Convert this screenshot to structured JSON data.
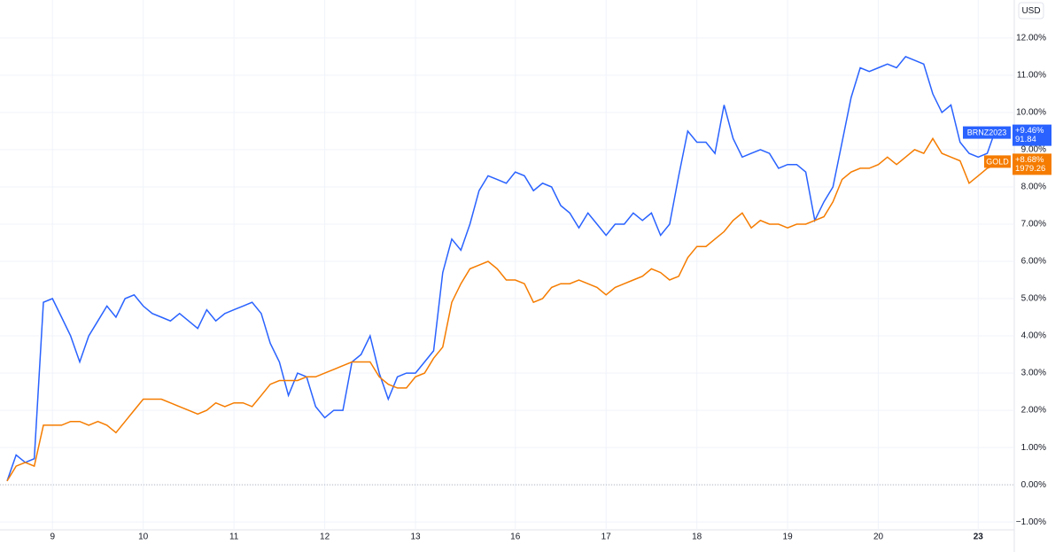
{
  "chart_data": {
    "type": "line",
    "currency": "USD",
    "categories": [
      null,
      null,
      null,
      null,
      null,
      "9",
      null,
      null,
      null,
      null,
      null,
      null,
      null,
      null,
      null,
      "10",
      null,
      null,
      null,
      null,
      null,
      null,
      null,
      null,
      null,
      "11",
      null,
      null,
      null,
      null,
      null,
      null,
      null,
      null,
      null,
      "12",
      null,
      null,
      null,
      null,
      null,
      null,
      null,
      null,
      null,
      "13",
      null,
      null,
      null,
      null,
      null,
      null,
      null,
      null,
      null,
      null,
      "16",
      null,
      null,
      null,
      null,
      null,
      null,
      null,
      null,
      null,
      "17",
      null,
      null,
      null,
      null,
      null,
      null,
      null,
      null,
      null,
      "18",
      null,
      null,
      null,
      null,
      null,
      null,
      null,
      null,
      null,
      "19",
      null,
      null,
      null,
      null,
      null,
      null,
      null,
      null,
      null,
      "20",
      null,
      null,
      null,
      null,
      null,
      null,
      null,
      null,
      null,
      null,
      "23",
      null,
      null,
      null
    ],
    "series": [
      {
        "name": "BRNZ2023",
        "color": "#2962ff",
        "last_label": "+9.46%",
        "last_price": "91.84",
        "values": [
          0.1,
          0.8,
          0.6,
          0.7,
          4.9,
          5.0,
          4.5,
          4.0,
          3.3,
          4.0,
          4.4,
          4.8,
          4.5,
          5.0,
          5.1,
          4.8,
          4.6,
          4.5,
          4.4,
          4.6,
          4.4,
          4.2,
          4.7,
          4.4,
          4.6,
          4.7,
          4.8,
          4.9,
          4.6,
          3.8,
          3.3,
          2.4,
          3.0,
          2.9,
          2.1,
          1.8,
          2.0,
          2.0,
          3.3,
          3.5,
          4.0,
          3.0,
          2.3,
          2.9,
          3.0,
          3.0,
          3.3,
          3.6,
          5.7,
          6.6,
          6.3,
          7.0,
          7.9,
          8.3,
          8.2,
          8.1,
          8.4,
          8.3,
          7.9,
          8.1,
          8.0,
          7.5,
          7.3,
          6.9,
          7.3,
          7.0,
          6.7,
          7.0,
          7.0,
          7.3,
          7.1,
          7.3,
          6.7,
          7.0,
          8.3,
          9.5,
          9.2,
          9.2,
          8.9,
          10.2,
          9.3,
          8.8,
          8.9,
          9.0,
          8.9,
          8.5,
          8.6,
          8.6,
          8.4,
          7.1,
          7.6,
          8.0,
          9.2,
          10.4,
          11.2,
          11.1,
          11.2,
          11.3,
          11.2,
          11.5,
          11.4,
          11.3,
          10.5,
          10.0,
          10.2,
          9.2,
          8.9,
          8.8,
          8.9,
          9.6,
          9.46
        ]
      },
      {
        "name": "GOLD",
        "color": "#f57c00",
        "last_label": "+8.68%",
        "last_price": "1979.26",
        "values": [
          0.1,
          0.5,
          0.6,
          0.5,
          1.6,
          1.6,
          1.6,
          1.7,
          1.7,
          1.6,
          1.7,
          1.6,
          1.4,
          1.7,
          2.0,
          2.3,
          2.3,
          2.3,
          2.2,
          2.1,
          2.0,
          1.9,
          2.0,
          2.2,
          2.1,
          2.2,
          2.2,
          2.1,
          2.4,
          2.7,
          2.8,
          2.8,
          2.8,
          2.9,
          2.9,
          3.0,
          3.1,
          3.2,
          3.3,
          3.3,
          3.3,
          2.9,
          2.7,
          2.6,
          2.6,
          2.9,
          3.0,
          3.4,
          3.7,
          4.9,
          5.4,
          5.8,
          5.9,
          6.0,
          5.8,
          5.5,
          5.5,
          5.4,
          4.9,
          5.0,
          5.3,
          5.4,
          5.4,
          5.5,
          5.4,
          5.3,
          5.1,
          5.3,
          5.4,
          5.5,
          5.6,
          5.8,
          5.7,
          5.5,
          5.6,
          6.1,
          6.4,
          6.4,
          6.6,
          6.8,
          7.1,
          7.3,
          6.9,
          7.1,
          7.0,
          7.0,
          6.9,
          7.0,
          7.0,
          7.1,
          7.2,
          7.6,
          8.2,
          8.4,
          8.5,
          8.5,
          8.6,
          8.8,
          8.6,
          8.8,
          9.0,
          8.9,
          9.3,
          8.9,
          8.8,
          8.7,
          8.1,
          8.3,
          8.5,
          8.6,
          8.68
        ]
      }
    ],
    "ylim": [
      -1.21,
      13.02
    ],
    "yticks": [
      {
        "value": -1,
        "label": "−1.00%"
      },
      {
        "value": 0,
        "label": "0.00%"
      },
      {
        "value": 1,
        "label": "1.00%"
      },
      {
        "value": 2,
        "label": "2.00%"
      },
      {
        "value": 3,
        "label": "3.00%"
      },
      {
        "value": 4,
        "label": "4.00%"
      },
      {
        "value": 5,
        "label": "5.00%"
      },
      {
        "value": 6,
        "label": "6.00%"
      },
      {
        "value": 7,
        "label": "7.00%"
      },
      {
        "value": 8,
        "label": "8.00%"
      },
      {
        "value": 9,
        "label": "9.00%"
      },
      {
        "value": 10,
        "label": "10.00%"
      },
      {
        "value": 11,
        "label": "11.00%"
      },
      {
        "value": 12,
        "label": "12.00%"
      }
    ],
    "grid": true
  }
}
